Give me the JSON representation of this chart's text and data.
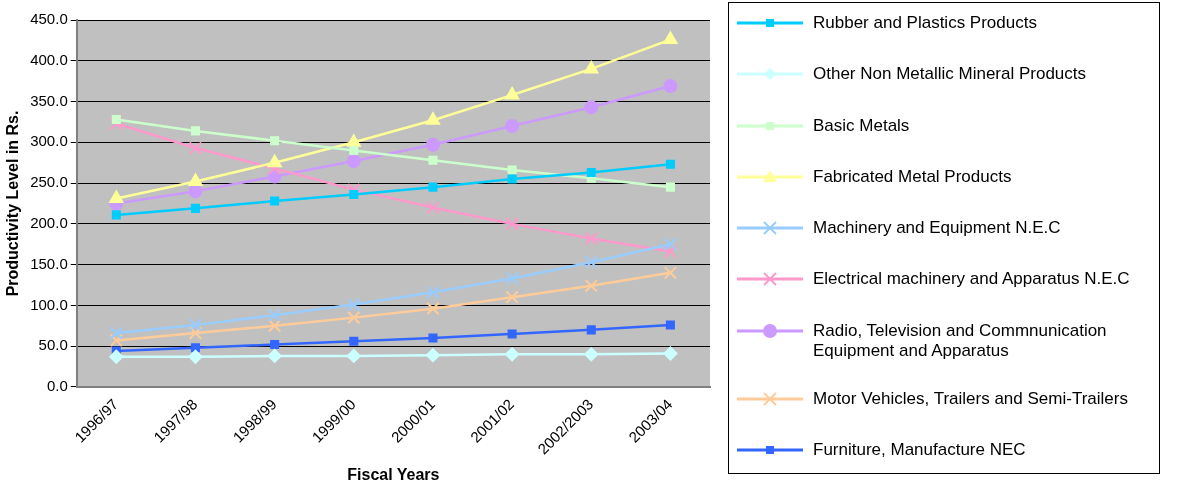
{
  "chart_data": {
    "type": "line",
    "xlabel": "Fiscal Years",
    "ylabel": "Productivity Level in Rs.",
    "categories": [
      "1996/97",
      "1997/98",
      "1998/99",
      "1999/00",
      "2000/01",
      "2001/02",
      "2002/2003",
      "2003/04"
    ],
    "ylim": [
      0,
      450
    ],
    "yticks": [
      {
        "value": 0,
        "label": "0.0"
      },
      {
        "value": 50,
        "label": "50.0"
      },
      {
        "value": 100,
        "label": "100.0"
      },
      {
        "value": 150,
        "label": "150.0"
      },
      {
        "value": 200,
        "label": "200.0"
      },
      {
        "value": 250,
        "label": "250.0"
      },
      {
        "value": 300,
        "label": "300.0"
      },
      {
        "value": 350,
        "label": "350.0"
      },
      {
        "value": 400,
        "label": "400.0"
      },
      {
        "value": 450,
        "label": "450.0"
      }
    ],
    "grid": "y",
    "legend": "right",
    "series": [
      {
        "name": "Rubber and Plastics Products",
        "color": "#00ccff",
        "marker": "square",
        "values": [
          211,
          219,
          228,
          236,
          245,
          255,
          263,
          273
        ]
      },
      {
        "name": "Other Non Metallic Mineral Products",
        "color": "#ccffff",
        "marker": "diamond",
        "values": [
          37,
          37,
          38,
          38,
          39,
          40,
          40,
          41
        ]
      },
      {
        "name": "Basic Metals",
        "color": "#ccffcc",
        "marker": "square",
        "values": [
          328,
          314,
          302,
          290,
          278,
          266,
          256,
          245
        ]
      },
      {
        "name": "Fabricated Metal Products",
        "color": "#ffff99",
        "marker": "triangle",
        "values": [
          231,
          252,
          275,
          300,
          327,
          358,
          390,
          426
        ]
      },
      {
        "name": "Machinery and Equipment N.E.C",
        "color": "#99ccff",
        "marker": "cross",
        "values": [
          66,
          76,
          88,
          101,
          116,
          133,
          153,
          175
        ]
      },
      {
        "name": "Electrical machinery and Apparatus N.E.C",
        "color": "#ff99cc",
        "marker": "cross",
        "values": [
          323,
          293,
          268,
          242,
          220,
          200,
          182,
          166
        ]
      },
      {
        "name": "Radio, Television and Commnunication Equipment and Apparatus",
        "color": "#cc99ff",
        "marker": "circle",
        "values": [
          225,
          240,
          258,
          277,
          297,
          320,
          343,
          369
        ]
      },
      {
        "name": "Motor Vehicles, Trailers and Semi-Trailers",
        "color": "#ffcc99",
        "marker": "cross",
        "values": [
          57,
          66,
          75,
          85,
          96,
          110,
          124,
          140
        ]
      },
      {
        "name": "Furniture, Manufacture NEC",
        "color": "#3366ff",
        "marker": "square",
        "values": [
          44,
          48,
          52,
          56,
          60,
          65,
          70,
          76
        ]
      }
    ]
  }
}
